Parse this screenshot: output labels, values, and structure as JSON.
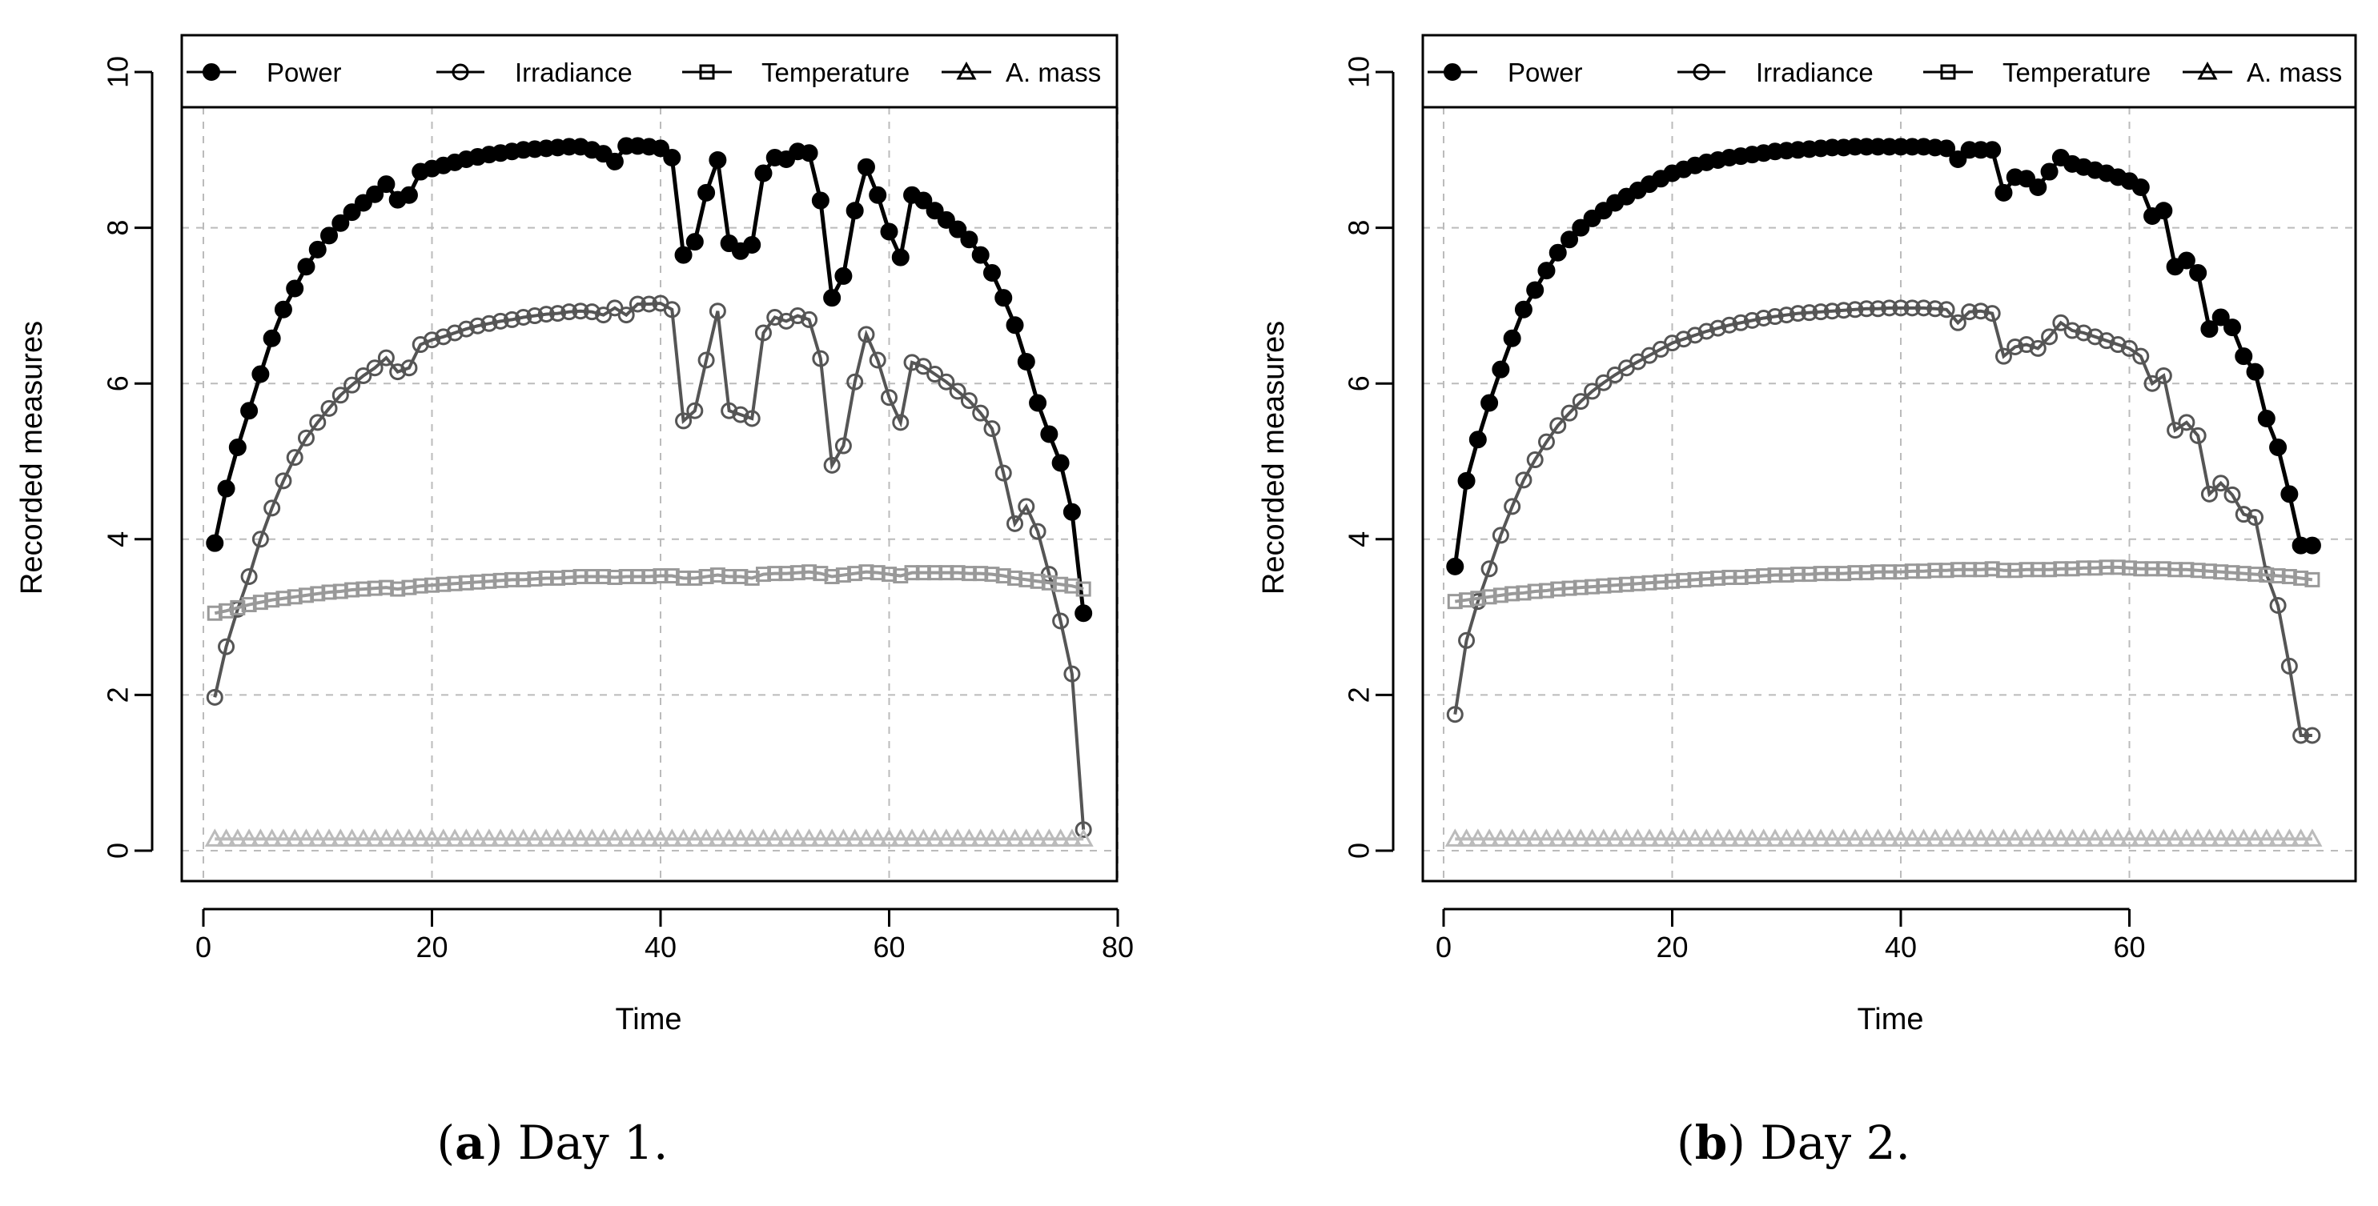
{
  "figure": {
    "charts": [
      {
        "caption_label": "a",
        "caption_text": "Day 1."
      },
      {
        "caption_label": "b",
        "caption_text": "Day 2."
      }
    ]
  },
  "chart_data": [
    {
      "type": "line",
      "title": "",
      "xlabel": "Time",
      "ylabel": "Recorded measures",
      "xlim": [
        0,
        80
      ],
      "ylim": [
        0,
        10
      ],
      "xticks": [
        0,
        20,
        40,
        60,
        80
      ],
      "yticks": [
        0,
        2,
        4,
        6,
        8,
        10
      ],
      "grid": true,
      "legend_position": "top",
      "x": [
        1,
        2,
        3,
        4,
        5,
        6,
        7,
        8,
        9,
        10,
        11,
        12,
        13,
        14,
        15,
        16,
        17,
        18,
        19,
        20,
        21,
        22,
        23,
        24,
        25,
        26,
        27,
        28,
        29,
        30,
        31,
        32,
        33,
        34,
        35,
        36,
        37,
        38,
        39,
        40,
        41,
        42,
        43,
        44,
        45,
        46,
        47,
        48,
        49,
        50,
        51,
        52,
        53,
        54,
        55,
        56,
        57,
        58,
        59,
        60,
        61,
        62,
        63,
        64,
        65,
        66,
        67,
        68,
        69,
        70,
        71,
        72,
        73,
        74,
        75,
        76,
        77
      ],
      "series": [
        {
          "name": "Power",
          "marker": "filled-circle",
          "color": "#000000",
          "values": [
            3.95,
            4.65,
            5.18,
            5.65,
            6.12,
            6.58,
            6.95,
            7.22,
            7.5,
            7.72,
            7.9,
            8.06,
            8.2,
            8.32,
            8.43,
            8.56,
            8.36,
            8.42,
            8.72,
            8.76,
            8.8,
            8.84,
            8.88,
            8.91,
            8.94,
            8.96,
            8.98,
            9.0,
            9.01,
            9.02,
            9.03,
            9.04,
            9.04,
            9.0,
            8.95,
            8.85,
            9.05,
            9.05,
            9.04,
            9.02,
            8.9,
            7.65,
            7.82,
            8.45,
            8.87,
            7.8,
            7.7,
            7.78,
            8.7,
            8.9,
            8.88,
            8.98,
            8.96,
            8.35,
            7.1,
            7.38,
            8.22,
            8.78,
            8.42,
            7.95,
            7.62,
            8.42,
            8.35,
            8.22,
            8.1,
            7.98,
            7.85,
            7.65,
            7.42,
            7.1,
            6.75,
            6.28,
            5.75,
            5.35,
            4.98,
            4.35,
            3.05
          ]
        },
        {
          "name": "Irradiance",
          "marker": "open-circle",
          "color": "#555555",
          "values": [
            1.97,
            2.62,
            3.1,
            3.52,
            4.0,
            4.4,
            4.75,
            5.05,
            5.3,
            5.5,
            5.68,
            5.85,
            5.98,
            6.1,
            6.2,
            6.33,
            6.15,
            6.2,
            6.5,
            6.56,
            6.6,
            6.65,
            6.7,
            6.74,
            6.77,
            6.8,
            6.82,
            6.85,
            6.87,
            6.89,
            6.9,
            6.92,
            6.93,
            6.92,
            6.88,
            6.97,
            6.88,
            7.02,
            7.02,
            7.03,
            6.95,
            5.52,
            5.65,
            6.3,
            6.93,
            5.65,
            5.6,
            5.55,
            6.65,
            6.85,
            6.8,
            6.87,
            6.82,
            6.32,
            4.95,
            5.2,
            6.02,
            6.63,
            6.3,
            5.82,
            5.5,
            6.27,
            6.22,
            6.12,
            6.02,
            5.9,
            5.78,
            5.62,
            5.42,
            4.85,
            4.2,
            4.42,
            4.1,
            3.55,
            2.95,
            2.27,
            0.27
          ]
        },
        {
          "name": "Temperature",
          "marker": "open-square",
          "color": "#999999",
          "values": [
            3.05,
            3.08,
            3.12,
            3.16,
            3.19,
            3.22,
            3.24,
            3.26,
            3.28,
            3.3,
            3.32,
            3.33,
            3.35,
            3.36,
            3.37,
            3.38,
            3.36,
            3.38,
            3.4,
            3.41,
            3.42,
            3.43,
            3.44,
            3.45,
            3.46,
            3.47,
            3.48,
            3.48,
            3.49,
            3.5,
            3.5,
            3.51,
            3.52,
            3.52,
            3.52,
            3.51,
            3.52,
            3.52,
            3.52,
            3.53,
            3.53,
            3.5,
            3.5,
            3.52,
            3.54,
            3.52,
            3.52,
            3.5,
            3.55,
            3.56,
            3.56,
            3.57,
            3.58,
            3.56,
            3.52,
            3.54,
            3.56,
            3.58,
            3.57,
            3.55,
            3.53,
            3.57,
            3.57,
            3.57,
            3.57,
            3.57,
            3.56,
            3.56,
            3.55,
            3.53,
            3.5,
            3.48,
            3.46,
            3.44,
            3.42,
            3.4,
            3.36
          ]
        },
        {
          "name": "A. mass",
          "marker": "open-triangle",
          "color": "#bbbbbb",
          "values": [
            0.15,
            0.15,
            0.15,
            0.15,
            0.15,
            0.15,
            0.15,
            0.15,
            0.15,
            0.15,
            0.15,
            0.15,
            0.15,
            0.15,
            0.15,
            0.15,
            0.15,
            0.15,
            0.15,
            0.15,
            0.15,
            0.15,
            0.15,
            0.15,
            0.15,
            0.15,
            0.15,
            0.15,
            0.15,
            0.15,
            0.15,
            0.15,
            0.15,
            0.15,
            0.15,
            0.15,
            0.15,
            0.15,
            0.15,
            0.15,
            0.15,
            0.15,
            0.15,
            0.15,
            0.15,
            0.15,
            0.15,
            0.15,
            0.15,
            0.15,
            0.15,
            0.15,
            0.15,
            0.15,
            0.15,
            0.15,
            0.15,
            0.15,
            0.15,
            0.15,
            0.15,
            0.15,
            0.15,
            0.15,
            0.15,
            0.15,
            0.15,
            0.15,
            0.15,
            0.15,
            0.15,
            0.15,
            0.15,
            0.15,
            0.15,
            0.15,
            0.15
          ]
        }
      ]
    },
    {
      "type": "line",
      "title": "",
      "xlabel": "Time",
      "ylabel": "Recorded measures",
      "xlim": [
        0,
        80
      ],
      "ylim": [
        0,
        10
      ],
      "xticks": [
        0,
        20,
        40,
        60
      ],
      "yticks": [
        0,
        2,
        4,
        6,
        8,
        10
      ],
      "grid": true,
      "legend_position": "top",
      "x": [
        1,
        2,
        3,
        4,
        5,
        6,
        7,
        8,
        9,
        10,
        11,
        12,
        13,
        14,
        15,
        16,
        17,
        18,
        19,
        20,
        21,
        22,
        23,
        24,
        25,
        26,
        27,
        28,
        29,
        30,
        31,
        32,
        33,
        34,
        35,
        36,
        37,
        38,
        39,
        40,
        41,
        42,
        43,
        44,
        45,
        46,
        47,
        48,
        49,
        50,
        51,
        52,
        53,
        54,
        55,
        56,
        57,
        58,
        59,
        60,
        61,
        62,
        63,
        64,
        65,
        66,
        67,
        68,
        69,
        70,
        71,
        72,
        73,
        74,
        75,
        76
      ],
      "series": [
        {
          "name": "Power",
          "marker": "filled-circle",
          "color": "#000000",
          "values": [
            3.65,
            4.75,
            5.28,
            5.75,
            6.18,
            6.58,
            6.95,
            7.2,
            7.45,
            7.68,
            7.85,
            8.0,
            8.12,
            8.22,
            8.32,
            8.4,
            8.48,
            8.56,
            8.63,
            8.7,
            8.75,
            8.8,
            8.84,
            8.87,
            8.9,
            8.92,
            8.94,
            8.96,
            8.98,
            8.99,
            9.0,
            9.01,
            9.02,
            9.03,
            9.03,
            9.04,
            9.04,
            9.04,
            9.04,
            9.04,
            9.04,
            9.04,
            9.03,
            9.02,
            8.88,
            9.0,
            9.0,
            9.0,
            8.45,
            8.65,
            8.63,
            8.52,
            8.72,
            8.9,
            8.82,
            8.78,
            8.74,
            8.7,
            8.65,
            8.6,
            8.52,
            8.15,
            8.22,
            7.5,
            7.58,
            7.42,
            6.7,
            6.85,
            6.72,
            6.35,
            6.15,
            5.55,
            5.18,
            4.58,
            3.92,
            3.92
          ]
        },
        {
          "name": "Irradiance",
          "marker": "open-circle",
          "color": "#555555",
          "values": [
            1.75,
            2.7,
            3.2,
            3.62,
            4.05,
            4.42,
            4.76,
            5.02,
            5.25,
            5.46,
            5.62,
            5.77,
            5.9,
            6.01,
            6.11,
            6.2,
            6.28,
            6.36,
            6.44,
            6.52,
            6.57,
            6.62,
            6.67,
            6.71,
            6.75,
            6.78,
            6.81,
            6.84,
            6.86,
            6.88,
            6.9,
            6.91,
            6.92,
            6.93,
            6.94,
            6.95,
            6.96,
            6.96,
            6.97,
            6.97,
            6.97,
            6.97,
            6.96,
            6.95,
            6.78,
            6.92,
            6.93,
            6.9,
            6.35,
            6.47,
            6.5,
            6.45,
            6.6,
            6.78,
            6.68,
            6.65,
            6.6,
            6.55,
            6.5,
            6.45,
            6.35,
            6.0,
            6.1,
            5.4,
            5.5,
            5.33,
            4.58,
            4.72,
            4.57,
            4.32,
            4.28,
            3.55,
            3.15,
            2.37,
            1.48,
            1.48
          ]
        },
        {
          "name": "Temperature",
          "marker": "open-square",
          "color": "#999999",
          "values": [
            3.2,
            3.22,
            3.24,
            3.26,
            3.28,
            3.3,
            3.31,
            3.33,
            3.34,
            3.36,
            3.37,
            3.38,
            3.39,
            3.4,
            3.41,
            3.42,
            3.43,
            3.44,
            3.45,
            3.46,
            3.47,
            3.48,
            3.49,
            3.5,
            3.51,
            3.51,
            3.52,
            3.53,
            3.54,
            3.54,
            3.55,
            3.55,
            3.56,
            3.56,
            3.56,
            3.57,
            3.57,
            3.58,
            3.58,
            3.58,
            3.59,
            3.59,
            3.6,
            3.6,
            3.61,
            3.61,
            3.61,
            3.62,
            3.6,
            3.6,
            3.61,
            3.61,
            3.61,
            3.62,
            3.62,
            3.63,
            3.63,
            3.64,
            3.64,
            3.63,
            3.62,
            3.62,
            3.62,
            3.61,
            3.61,
            3.6,
            3.59,
            3.58,
            3.57,
            3.56,
            3.55,
            3.54,
            3.53,
            3.52,
            3.5,
            3.48
          ]
        },
        {
          "name": "A. mass",
          "marker": "open-triangle",
          "color": "#bbbbbb",
          "values": [
            0.15,
            0.15,
            0.15,
            0.15,
            0.15,
            0.15,
            0.15,
            0.15,
            0.15,
            0.15,
            0.15,
            0.15,
            0.15,
            0.15,
            0.15,
            0.15,
            0.15,
            0.15,
            0.15,
            0.15,
            0.15,
            0.15,
            0.15,
            0.15,
            0.15,
            0.15,
            0.15,
            0.15,
            0.15,
            0.15,
            0.15,
            0.15,
            0.15,
            0.15,
            0.15,
            0.15,
            0.15,
            0.15,
            0.15,
            0.15,
            0.15,
            0.15,
            0.15,
            0.15,
            0.15,
            0.15,
            0.15,
            0.15,
            0.15,
            0.15,
            0.15,
            0.15,
            0.15,
            0.15,
            0.15,
            0.15,
            0.15,
            0.15,
            0.15,
            0.15,
            0.15,
            0.15,
            0.15,
            0.15,
            0.15,
            0.15,
            0.15,
            0.15,
            0.15,
            0.15,
            0.15,
            0.15,
            0.15,
            0.15,
            0.15,
            0.15
          ]
        }
      ]
    }
  ]
}
